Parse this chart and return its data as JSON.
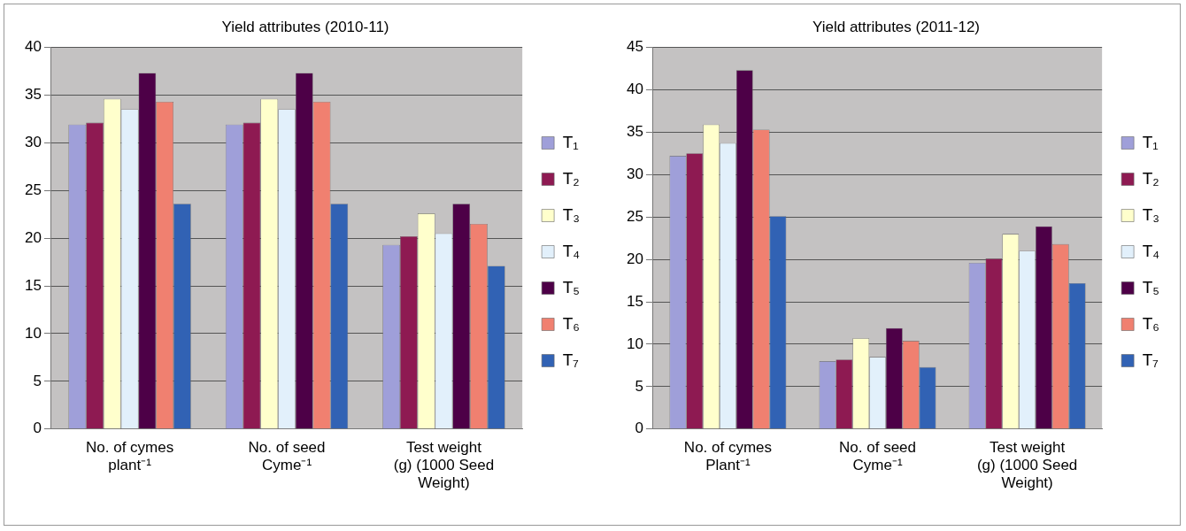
{
  "chart_data": [
    {
      "type": "bar",
      "title": "Yield attributes (2010-11)",
      "categories": [
        "No. of cymes plant⁻¹",
        "No. of seed Cyme⁻¹",
        "Test weight (g) (1000 Seed Weight)"
      ],
      "series": [
        {
          "name": "T₁",
          "color": "#9f9fd9",
          "values": [
            31.9,
            31.9,
            19.3
          ]
        },
        {
          "name": "T₂",
          "color": "#8e1a52",
          "values": [
            32.1,
            32.1,
            20.2
          ]
        },
        {
          "name": "T₃",
          "color": "#ffffcc",
          "values": [
            34.6,
            34.6,
            22.6
          ]
        },
        {
          "name": "T₄",
          "color": "#e2f0fb",
          "values": [
            33.5,
            33.5,
            20.5
          ]
        },
        {
          "name": "T₅",
          "color": "#4d0047",
          "values": [
            37.3,
            37.3,
            23.6
          ]
        },
        {
          "name": "T₆",
          "color": "#f08070",
          "values": [
            34.3,
            34.3,
            21.5
          ]
        },
        {
          "name": "T₇",
          "color": "#3162b4",
          "values": [
            23.6,
            23.6,
            17.1
          ]
        }
      ],
      "ylim": [
        0,
        40
      ],
      "yticks": [
        0,
        5,
        10,
        15,
        20,
        25,
        30,
        35,
        40
      ],
      "grid": "y",
      "legend": "right"
    },
    {
      "type": "bar",
      "title": "Yield attributes (2011-12)",
      "categories": [
        "No. of cymes Plant⁻¹",
        "No. of seed Cyme⁻¹",
        "Test weight (g) (1000 Seed Weight)"
      ],
      "series": [
        {
          "name": "T₁",
          "color": "#9f9fd9",
          "values": [
            32.2,
            8.0,
            19.6
          ]
        },
        {
          "name": "T₂",
          "color": "#8e1a52",
          "values": [
            32.5,
            8.2,
            20.1
          ]
        },
        {
          "name": "T₃",
          "color": "#ffffcc",
          "values": [
            35.9,
            10.7,
            23.0
          ]
        },
        {
          "name": "T₄",
          "color": "#e2f0fb",
          "values": [
            33.7,
            8.5,
            21.0
          ]
        },
        {
          "name": "T₅",
          "color": "#4d0047",
          "values": [
            42.3,
            11.9,
            23.9
          ]
        },
        {
          "name": "T₆",
          "color": "#f08070",
          "values": [
            35.3,
            10.4,
            21.8
          ]
        },
        {
          "name": "T₇",
          "color": "#3162b4",
          "values": [
            25.1,
            7.3,
            17.2
          ]
        }
      ],
      "ylim": [
        0,
        45
      ],
      "yticks": [
        0,
        5,
        10,
        15,
        20,
        25,
        30,
        35,
        40,
        45
      ],
      "grid": "y",
      "legend": "right"
    }
  ]
}
